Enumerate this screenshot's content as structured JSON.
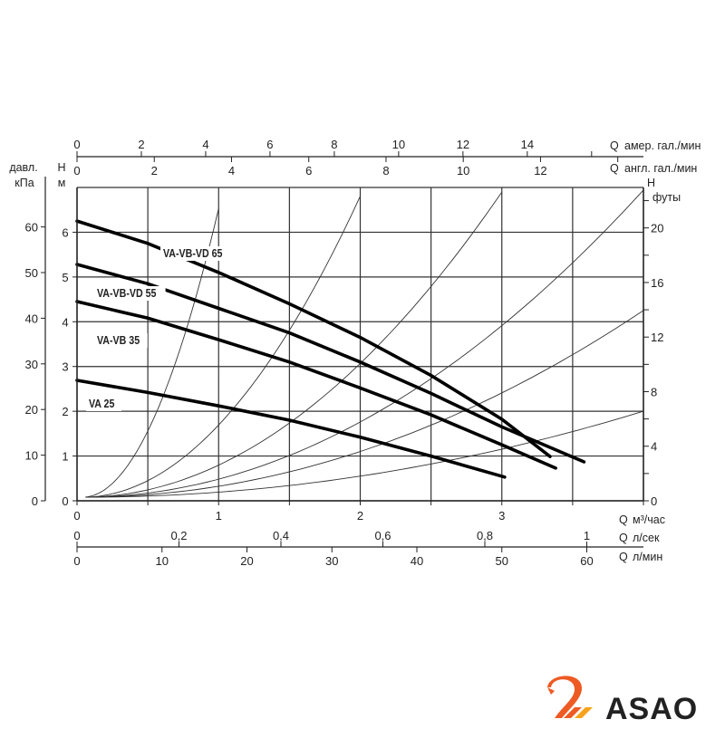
{
  "chart_data": {
    "type": "line",
    "title": "",
    "x": {
      "label_q": "Q",
      "primary": {
        "unit": "м³/час",
        "ticks": [
          0,
          1,
          2,
          3
        ],
        "range": [
          0,
          4
        ]
      },
      "l_per_sec": {
        "unit": "л/сек",
        "ticks": [
          0,
          0.2,
          0.4,
          0.6,
          0.8,
          1
        ],
        "tick_labels": [
          "0",
          "0,2",
          "0,4",
          "0,6",
          "0,8",
          "1"
        ]
      },
      "l_per_min": {
        "unit": "л/мин",
        "ticks": [
          0,
          10,
          20,
          30,
          40,
          50,
          60
        ]
      },
      "us_gpm": {
        "unit": "амер. гал./мин",
        "ticks": [
          0,
          2,
          4,
          6,
          8,
          10,
          12,
          14
        ]
      },
      "uk_gpm": {
        "unit": "англ. гал./мин",
        "ticks": [
          0,
          2,
          4,
          6,
          8,
          10,
          12
        ]
      }
    },
    "y": {
      "label_h": "H",
      "primary": {
        "unit": "м",
        "ticks": [
          0,
          1,
          2,
          3,
          4,
          5,
          6
        ],
        "range": [
          0,
          7
        ]
      },
      "kpa": {
        "label": "давл.",
        "unit": "кПа",
        "ticks": [
          0,
          10,
          20,
          30,
          40,
          50,
          60
        ]
      },
      "feet": {
        "unit": "футы",
        "ticks": [
          0,
          4,
          8,
          12,
          16,
          20
        ]
      }
    },
    "grid": true,
    "series": [
      {
        "name": "VA-VB-VD 65",
        "points": [
          [
            0,
            6.25
          ],
          [
            0.5,
            5.75
          ],
          [
            1,
            5.1
          ],
          [
            1.5,
            4.4
          ],
          [
            2,
            3.65
          ],
          [
            2.5,
            2.8
          ],
          [
            3,
            1.82
          ],
          [
            3.34,
            0.99
          ]
        ]
      },
      {
        "name": "VA-VB-VD 55",
        "points": [
          [
            0,
            5.28
          ],
          [
            0.5,
            4.85
          ],
          [
            1,
            4.3
          ],
          [
            1.5,
            3.75
          ],
          [
            2,
            3.1
          ],
          [
            2.5,
            2.4
          ],
          [
            3,
            1.65
          ],
          [
            3.58,
            0.87
          ]
        ]
      },
      {
        "name": "VA-VB 35",
        "points": [
          [
            0,
            4.45
          ],
          [
            0.5,
            4.08
          ],
          [
            1,
            3.6
          ],
          [
            1.5,
            3.1
          ],
          [
            2,
            2.52
          ],
          [
            2.5,
            1.92
          ],
          [
            3,
            1.25
          ],
          [
            3.38,
            0.73
          ]
        ]
      },
      {
        "name": "VA 25",
        "points": [
          [
            0,
            2.69
          ],
          [
            0.5,
            2.42
          ],
          [
            1,
            2.12
          ],
          [
            1.5,
            1.8
          ],
          [
            2,
            1.42
          ],
          [
            2.5,
            1.0
          ],
          [
            3.02,
            0.53
          ]
        ]
      }
    ],
    "system_curves_k": [
      7,
      1.75,
      0.778,
      0.4375,
      0.266,
      0.1225
    ]
  },
  "logo": {
    "text": "ASAO",
    "colors": {
      "text": "#1f3a5a",
      "mark": "#ee5a24",
      "accent": "#f7a21b"
    }
  }
}
